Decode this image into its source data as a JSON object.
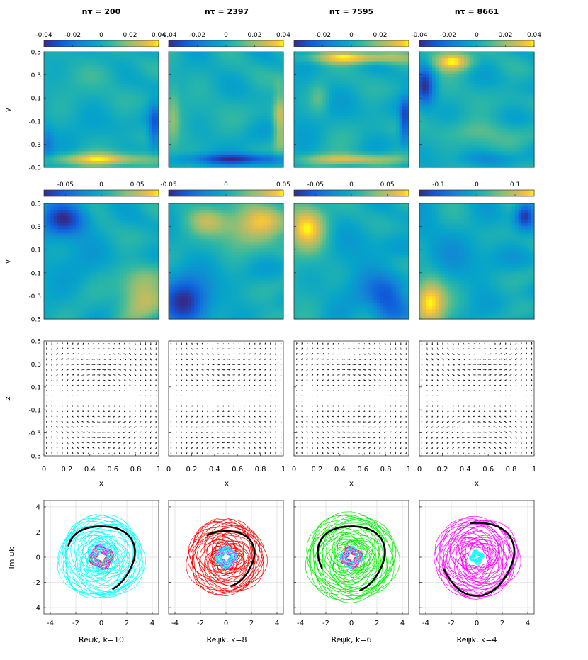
{
  "chart_data": {
    "type": "figure-grid",
    "column_titles": [
      "nτ = 200",
      "nτ = 2397",
      "nτ = 7595",
      "nτ = 8661"
    ],
    "row1": {
      "type": "heatmap",
      "ylabel": "y",
      "ylim": [
        -0.5,
        0.5
      ],
      "yticks": [
        "0.5",
        "0.3",
        "0.1",
        "-0.1",
        "-0.3",
        "-0.5"
      ],
      "colorbars": [
        {
          "range": [
            -0.04,
            0.04
          ],
          "ticks": [
            {
              "v": -0.04,
              "t": "-0.04"
            },
            {
              "v": -0.02,
              "t": "-0.02"
            },
            {
              "v": 0,
              "t": "0"
            },
            {
              "v": 0.02,
              "t": "0.02"
            },
            {
              "v": 0.04,
              "t": "0.04"
            }
          ]
        },
        {
          "range": [
            -0.04,
            0.04
          ],
          "ticks": [
            {
              "v": -0.04,
              "t": "-0.04"
            },
            {
              "v": -0.02,
              "t": "-0.02"
            },
            {
              "v": 0,
              "t": "0"
            },
            {
              "v": 0.02,
              "t": "0.02"
            },
            {
              "v": 0.04,
              "t": "0.04"
            }
          ]
        },
        {
          "range": [
            -0.04,
            0.04
          ],
          "ticks": [
            {
              "v": -0.02,
              "t": "-0.02"
            },
            {
              "v": 0,
              "t": "0"
            },
            {
              "v": 0.02,
              "t": "0.02"
            }
          ]
        },
        {
          "range": [
            -0.04,
            0.04
          ],
          "ticks": [
            {
              "v": -0.04,
              "t": "-0.04"
            },
            {
              "v": -0.02,
              "t": "-0.02"
            },
            {
              "v": 0,
              "t": "0"
            },
            {
              "v": 0.02,
              "t": "0.02"
            },
            {
              "v": 0.04,
              "t": "0.04"
            }
          ]
        }
      ],
      "features": [
        [
          {
            "x": 0.5,
            "y": -0.43,
            "sx": 0.32,
            "sy": 0.04,
            "a": 1.0
          },
          {
            "x": 0.97,
            "y": -0.15,
            "sx": 0.04,
            "sy": 0.13,
            "a": -0.8
          },
          {
            "x": 0.03,
            "y": -0.3,
            "sx": 0.04,
            "sy": 0.1,
            "a": -0.5
          },
          {
            "x": 0.5,
            "y": 0.3,
            "sx": 0.2,
            "sy": 0.08,
            "a": 0.15
          }
        ],
        [
          {
            "x": 0.6,
            "y": -0.43,
            "sx": 0.3,
            "sy": 0.035,
            "a": -1.0
          },
          {
            "x": 0.97,
            "y": -0.1,
            "sx": 0.04,
            "sy": 0.2,
            "a": 0.75
          },
          {
            "x": 0.04,
            "y": -0.05,
            "sx": 0.04,
            "sy": 0.2,
            "a": 0.35
          },
          {
            "x": 0.5,
            "y": 0.2,
            "sx": 0.25,
            "sy": 0.15,
            "a": 0.05
          }
        ],
        [
          {
            "x": 0.55,
            "y": 0.45,
            "sx": 0.3,
            "sy": 0.035,
            "a": 1.0
          },
          {
            "x": 0.5,
            "y": -0.43,
            "sx": 0.3,
            "sy": 0.035,
            "a": 0.8
          },
          {
            "x": 0.97,
            "y": -0.1,
            "sx": 0.035,
            "sy": 0.13,
            "a": -0.9
          },
          {
            "x": 0.22,
            "y": 0.1,
            "sx": 0.06,
            "sy": 0.1,
            "a": 0.35
          }
        ],
        [
          {
            "x": 0.3,
            "y": 0.42,
            "sx": 0.12,
            "sy": 0.06,
            "a": 1.0
          },
          {
            "x": 0.05,
            "y": 0.2,
            "sx": 0.06,
            "sy": 0.12,
            "a": -1.0
          },
          {
            "x": 0.5,
            "y": -0.2,
            "sx": 0.25,
            "sy": 0.08,
            "a": 0.35
          },
          {
            "x": 0.6,
            "y": -0.42,
            "sx": 0.18,
            "sy": 0.04,
            "a": -0.3
          }
        ]
      ]
    },
    "row2": {
      "type": "heatmap",
      "ylabel": "y",
      "ylim": [
        -0.5,
        0.5
      ],
      "yticks": [
        "0.5",
        "0.3",
        "0.1",
        "-0.1",
        "-0.3",
        "-0.5"
      ],
      "colorbars": [
        {
          "range": [
            -0.08,
            0.08
          ],
          "ticks": [
            {
              "v": -0.05,
              "t": "-0.05"
            },
            {
              "v": 0,
              "t": "0"
            },
            {
              "v": 0.05,
              "t": "0.05"
            }
          ]
        },
        {
          "range": [
            -0.05,
            0.05
          ],
          "ticks": [
            {
              "v": -0.05,
              "t": "-0.05"
            },
            {
              "v": 0,
              "t": "0"
            },
            {
              "v": 0.05,
              "t": "0.05"
            }
          ]
        },
        {
          "range": [
            -0.08,
            0.08
          ],
          "ticks": [
            {
              "v": -0.05,
              "t": "-0.05"
            },
            {
              "v": 0,
              "t": "0"
            },
            {
              "v": 0.05,
              "t": "0.05"
            }
          ]
        },
        {
          "range": [
            -0.15,
            0.15
          ],
          "ticks": [
            {
              "v": -0.1,
              "t": "-0.1"
            },
            {
              "v": 0,
              "t": "0"
            },
            {
              "v": 0.1,
              "t": "0.1"
            }
          ]
        }
      ],
      "features": [
        [
          {
            "x": 0.18,
            "y": 0.36,
            "sx": 0.14,
            "sy": 0.1,
            "a": -1.0
          },
          {
            "x": 0.85,
            "y": -0.3,
            "sx": 0.14,
            "sy": 0.15,
            "a": 0.8
          },
          {
            "x": 0.3,
            "y": -0.1,
            "sx": 0.15,
            "sy": 0.15,
            "a": -0.15
          }
        ],
        [
          {
            "x": 0.15,
            "y": -0.35,
            "sx": 0.15,
            "sy": 0.15,
            "a": -1.0
          },
          {
            "x": 0.75,
            "y": 0.32,
            "sx": 0.2,
            "sy": 0.12,
            "a": 0.9
          },
          {
            "x": 0.35,
            "y": 0.35,
            "sx": 0.12,
            "sy": 0.08,
            "a": 0.5
          }
        ],
        [
          {
            "x": 0.12,
            "y": 0.3,
            "sx": 0.12,
            "sy": 0.14,
            "a": 1.0
          },
          {
            "x": 0.82,
            "y": -0.35,
            "sx": 0.12,
            "sy": 0.12,
            "a": -0.8
          },
          {
            "x": 0.6,
            "y": -0.1,
            "sx": 0.2,
            "sy": 0.2,
            "a": -0.25
          }
        ],
        [
          {
            "x": 0.08,
            "y": -0.35,
            "sx": 0.1,
            "sy": 0.15,
            "a": 1.0
          },
          {
            "x": 0.92,
            "y": 0.4,
            "sx": 0.06,
            "sy": 0.08,
            "a": -0.9
          },
          {
            "x": 0.4,
            "y": 0.0,
            "sx": 0.25,
            "sy": 0.25,
            "a": -0.12
          }
        ]
      ]
    },
    "row3": {
      "type": "quiver",
      "xlabel": "x",
      "ylabel": "z",
      "xlim": [
        0,
        1
      ],
      "ylim": [
        -0.5,
        0.5
      ],
      "xticks": [
        "0",
        "0.2",
        "0.4",
        "0.6",
        "0.8",
        "1"
      ],
      "yticks": [
        "0.5",
        "0.3",
        "0.1",
        "-0.1",
        "-0.3",
        "-0.5"
      ],
      "vortex_strength": [
        1.0,
        0.8,
        0.9,
        1.0
      ]
    },
    "row4": {
      "type": "line",
      "ylabel": "Im ψk",
      "xlabels": [
        "Reψk, k=10",
        "Reψk, k=8",
        "Reψk, k=6",
        "Reψk, k=4"
      ],
      "xlim": [
        -4.5,
        4.5
      ],
      "ylim": [
        -4.5,
        4.5
      ],
      "ticks": [
        "-4",
        "-2",
        "0",
        "2",
        "4"
      ],
      "series": [
        {
          "main_color": "#00ffff",
          "inner_colors": [
            "#ff0000",
            "#ff00ff",
            "#00ffff"
          ],
          "outer_radius": 3.2,
          "inner_radius": 0.9,
          "arc": {
            "radius": 2.6,
            "start_deg": 160,
            "end_deg": -70
          }
        },
        {
          "main_color": "#ff0000",
          "inner_colors": [
            "#00ffff",
            "#ff00ff",
            "#00ffff"
          ],
          "outer_radius": 2.9,
          "inner_radius": 0.8,
          "arc": {
            "radius": 2.2,
            "start_deg": 130,
            "end_deg": -80
          }
        },
        {
          "main_color": "#00ee00",
          "inner_colors": [
            "#ff0000",
            "#ff00ff",
            "#00ffff"
          ],
          "outer_radius": 3.4,
          "inner_radius": 0.8,
          "arc": {
            "radius": 2.6,
            "start_deg": 200,
            "end_deg": -75
          }
        },
        {
          "main_color": "#ff00ff",
          "inner_colors": [
            "#00ffff",
            "#00ffff"
          ],
          "outer_radius": 3.1,
          "inner_radius": 0.5,
          "arc": {
            "radius": 2.9,
            "start_deg": 100,
            "end_deg": -160
          }
        }
      ]
    }
  }
}
